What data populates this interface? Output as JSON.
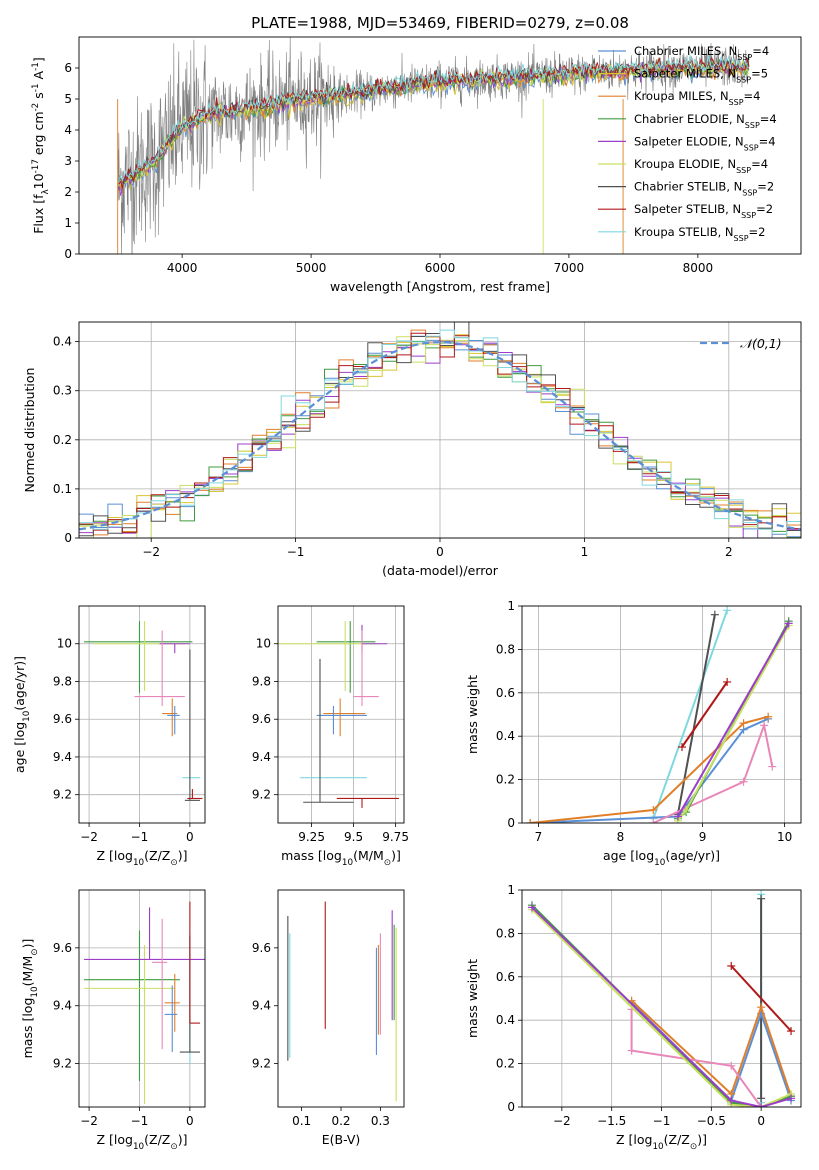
{
  "figure": {
    "title": "PLATE=1988, MJD=53469, FIBERID=0279, z=0.08"
  },
  "colors": {
    "chabrier_miles": "#5b8fd6",
    "salpeter_miles": "#d9c430",
    "kroupa_miles": "#e07f2a",
    "chabrier_elodie": "#3f9b3f",
    "salpeter_elodie": "#9b3fc8",
    "kroupa_elodie": "#c8e060",
    "chabrier_stelib": "#505050",
    "salpeter_stelib": "#b01818",
    "kroupa_stelib": "#7fd8e0",
    "extra_pink": "#e887b8",
    "data_gray": "#808080",
    "normal_fit": "#5b8fd6"
  },
  "chart_data": [
    {
      "id": "spectrum",
      "type": "line",
      "title": "PLATE=1988, MJD=53469, FIBERID=0279, z=0.08",
      "xlabel": "wavelength [Angstrom, rest frame]",
      "ylabel": "Flux [f$_\\lambda$10$^{-17}$ erg cm$^{-2}$ s$^{-1}$ A$^{-1}$]",
      "xlim": [
        3200,
        8800
      ],
      "ylim": [
        0,
        7
      ],
      "xticks": [
        4000,
        5000,
        6000,
        7000,
        8000
      ],
      "yticks": [
        0,
        1,
        2,
        3,
        4,
        5,
        6
      ],
      "legend_position": "top-right",
      "legend": [
        {
          "label": "Chabrier MILES, N$_{SSP}$=4",
          "color_key": "chabrier_miles"
        },
        {
          "label": "Salpeter MILES, N$_{SSP}$=5",
          "color_key": "salpeter_miles"
        },
        {
          "label": "Kroupa MILES, N$_{SSP}$=4",
          "color_key": "kroupa_miles"
        },
        {
          "label": "Chabrier ELODIE, N$_{SSP}$=4",
          "color_key": "chabrier_elodie"
        },
        {
          "label": "Salpeter ELODIE, N$_{SSP}$=4",
          "color_key": "salpeter_elodie"
        },
        {
          "label": "Kroupa ELODIE, N$_{SSP}$=4",
          "color_key": "kroupa_elodie"
        },
        {
          "label": "Chabrier STELIB, N$_{SSP}$=2",
          "color_key": "chabrier_stelib"
        },
        {
          "label": "Salpeter STELIB, N$_{SSP}$=2",
          "color_key": "salpeter_stelib"
        },
        {
          "label": "Kroupa STELIB, N$_{SSP}$=2",
          "color_key": "kroupa_stelib"
        }
      ],
      "model_continuum": {
        "x": [
          3500,
          3600,
          3800,
          3900,
          4000,
          4100,
          4200,
          4400,
          4600,
          4800,
          5000,
          5200,
          5400,
          5600,
          5800,
          6000,
          6200,
          6400,
          6600,
          6800,
          7000,
          7200,
          7400,
          7600,
          7800,
          8000,
          8200,
          8400
        ],
        "y": [
          2.2,
          2.5,
          3.0,
          3.6,
          4.1,
          4.3,
          4.5,
          4.6,
          4.75,
          4.9,
          5.0,
          5.1,
          5.2,
          5.35,
          5.45,
          5.55,
          5.6,
          5.65,
          5.7,
          5.75,
          5.8,
          5.85,
          5.9,
          5.95,
          6.0,
          6.0,
          6.05,
          6.0
        ]
      }
    },
    {
      "id": "residuals",
      "type": "histogram",
      "xlabel": "(data-model)/error",
      "ylabel": "Normed distribution",
      "xlim": [
        -2.5,
        2.5
      ],
      "ylim": [
        0,
        0.44
      ],
      "xticks": [
        -2,
        -1,
        0,
        1,
        2
      ],
      "yticks": [
        0.0,
        0.1,
        0.2,
        0.3,
        0.4
      ],
      "legend": [
        {
          "label": "$\\mathcal{N}(0,1)$",
          "color_key": "normal_fit",
          "style": "dashed"
        }
      ],
      "grid": true
    },
    {
      "id": "age_vs_Z",
      "type": "errorbar",
      "xlabel": "Z [log$_{10}$(Z/Z$_\\odot$)]",
      "ylabel": "age  [log$_{10}$(age/yr)]",
      "xlim": [
        -2.2,
        0.3
      ],
      "ylim": [
        9.05,
        10.2
      ],
      "xticks": [
        -2,
        -1,
        0
      ],
      "yticks": [
        9.2,
        9.4,
        9.6,
        9.8,
        10.0
      ],
      "grid": true,
      "points": [
        {
          "x": -1.0,
          "xerr": [
            1.1,
            1.05
          ],
          "y": 10.01,
          "yerr": [
            0.27,
            0.11
          ],
          "color_key": "chabrier_elodie"
        },
        {
          "x": -0.9,
          "xerr": [
            1.0,
            0.8
          ],
          "y": 10.0,
          "yerr": [
            0.25,
            0.12
          ],
          "color_key": "kroupa_elodie"
        },
        {
          "x": -0.3,
          "xerr": [
            0.3,
            0.3
          ],
          "y": 10.0,
          "yerr": [
            0.05,
            0.0
          ],
          "color_key": "salpeter_elodie"
        },
        {
          "x": -0.55,
          "xerr": [
            0.55,
            0.45
          ],
          "y": 9.72,
          "yerr": [
            0.05,
            0.35
          ],
          "color_key": "extra_pink"
        },
        {
          "x": -0.35,
          "xerr": [
            0.2,
            0.1
          ],
          "y": 9.63,
          "yerr": [
            0.12,
            0.08
          ],
          "color_key": "kroupa_miles"
        },
        {
          "x": -0.3,
          "xerr": [
            0.15,
            0.1
          ],
          "y": 9.62,
          "yerr": [
            0.1,
            0.05
          ],
          "color_key": "chabrier_miles"
        },
        {
          "x": 0.0,
          "xerr": [
            0.15,
            0.2
          ],
          "y": 9.29,
          "yerr": [
            0.0,
            0.0
          ],
          "color_key": "kroupa_stelib"
        },
        {
          "x": 0.0,
          "xerr": [
            0.1,
            0.2
          ],
          "y": 9.17,
          "yerr": [
            0.0,
            0.8
          ],
          "color_key": "chabrier_stelib"
        },
        {
          "x": 0.05,
          "xerr": [
            0.1,
            0.2
          ],
          "y": 9.18,
          "yerr": [
            0.0,
            0.05
          ],
          "color_key": "salpeter_stelib"
        }
      ]
    },
    {
      "id": "age_vs_mass",
      "type": "errorbar",
      "xlabel": "mass [log$_{10}$(M/M$_\\odot$)]",
      "ylabel": "",
      "xlim": [
        9.05,
        9.8
      ],
      "ylim": [
        9.05,
        10.2
      ],
      "xticks": [
        9.25,
        9.5,
        9.75
      ],
      "yticks": [
        9.2,
        9.4,
        9.6,
        9.8,
        10.0
      ],
      "grid": true,
      "points": [
        {
          "x": 9.48,
          "xerr": [
            0.2,
            0.15
          ],
          "y": 10.01,
          "yerr": [
            0.27,
            0.11
          ],
          "color_key": "chabrier_elodie"
        },
        {
          "x": 9.45,
          "xerr": [
            0.4,
            0.2
          ],
          "y": 10.0,
          "yerr": [
            0.25,
            0.12
          ],
          "color_key": "kroupa_elodie"
        },
        {
          "x": 9.55,
          "xerr": [
            0.0,
            0.15
          ],
          "y": 10.0,
          "yerr": [
            0.05,
            0.1
          ],
          "color_key": "salpeter_elodie"
        },
        {
          "x": 9.55,
          "xerr": [
            0.05,
            0.1
          ],
          "y": 9.72,
          "yerr": [
            0.05,
            0.35
          ],
          "color_key": "extra_pink"
        },
        {
          "x": 9.42,
          "xerr": [
            0.1,
            0.15
          ],
          "y": 9.63,
          "yerr": [
            0.12,
            0.08
          ],
          "color_key": "kroupa_miles"
        },
        {
          "x": 9.38,
          "xerr": [
            0.1,
            0.2
          ],
          "y": 9.62,
          "yerr": [
            0.1,
            0.05
          ],
          "color_key": "chabrier_miles"
        },
        {
          "x": 9.38,
          "xerr": [
            0.2,
            0.2
          ],
          "y": 9.29,
          "yerr": [
            0.0,
            0.0
          ],
          "color_key": "kroupa_stelib"
        },
        {
          "x": 9.3,
          "xerr": [
            0.1,
            0.2
          ],
          "y": 9.16,
          "yerr": [
            0.0,
            0.76
          ],
          "color_key": "chabrier_stelib"
        },
        {
          "x": 9.55,
          "xerr": [
            0.15,
            0.22
          ],
          "y": 9.18,
          "yerr": [
            0.05,
            0.0
          ],
          "color_key": "salpeter_stelib"
        }
      ]
    },
    {
      "id": "massweight_vs_age",
      "type": "line",
      "xlabel": "age  [log$_{10}$(age/yr)]",
      "ylabel": "mass weight",
      "xlim": [
        6.8,
        10.2
      ],
      "ylim": [
        0,
        1.0
      ],
      "xticks": [
        7,
        8,
        9,
        10
      ],
      "yticks": [
        0.0,
        0.2,
        0.4,
        0.6,
        0.8,
        1.0
      ],
      "grid": true,
      "series": [
        {
          "color_key": "kroupa_stelib",
          "x": [
            8.4,
            9.3
          ],
          "y": [
            0.02,
            0.98
          ]
        },
        {
          "color_key": "chabrier_stelib",
          "x": [
            8.7,
            9.15
          ],
          "y": [
            0.04,
            0.96
          ]
        },
        {
          "color_key": "salpeter_stelib",
          "x": [
            8.75,
            9.3
          ],
          "y": [
            0.35,
            0.65
          ]
        },
        {
          "color_key": "chabrier_miles",
          "x": [
            6.9,
            8.7,
            9.5,
            9.8
          ],
          "y": [
            0.0,
            0.03,
            0.43,
            0.48
          ]
        },
        {
          "color_key": "kroupa_miles",
          "x": [
            6.9,
            8.4,
            9.5,
            9.8
          ],
          "y": [
            0.0,
            0.06,
            0.46,
            0.49
          ]
        },
        {
          "color_key": "extra_pink",
          "x": [
            8.4,
            9.5,
            9.75,
            9.85
          ],
          "y": [
            0.0,
            0.19,
            0.45,
            0.26
          ]
        },
        {
          "color_key": "chabrier_elodie",
          "x": [
            8.7,
            8.8,
            10.05
          ],
          "y": [
            0.02,
            0.05,
            0.93
          ]
        },
        {
          "color_key": "kroupa_elodie",
          "x": [
            8.7,
            8.8,
            10.05
          ],
          "y": [
            0.01,
            0.06,
            0.91
          ]
        },
        {
          "color_key": "salpeter_elodie",
          "x": [
            8.7,
            10.05
          ],
          "y": [
            0.03,
            0.92
          ]
        }
      ]
    },
    {
      "id": "mass_vs_Z",
      "type": "errorbar",
      "xlabel": "Z [log$_{10}$(Z/Z$_\\odot$)]",
      "ylabel": "mass [log$_{10}$(M/M$_\\odot$)]",
      "xlim": [
        -2.2,
        0.3
      ],
      "ylim": [
        9.05,
        9.8
      ],
      "xticks": [
        -2,
        -1,
        0
      ],
      "yticks": [
        9.2,
        9.4,
        9.6
      ],
      "grid": true,
      "points": [
        {
          "x": -1.0,
          "xerr": [
            1.1,
            0.8
          ],
          "y": 9.49,
          "yerr": [
            0.35,
            0.17
          ],
          "color_key": "chabrier_elodie"
        },
        {
          "x": -0.9,
          "xerr": [
            1.2,
            0.6
          ],
          "y": 9.46,
          "yerr": [
            0.4,
            0.15
          ],
          "color_key": "kroupa_elodie"
        },
        {
          "x": -0.8,
          "xerr": [
            1.3,
            1.1
          ],
          "y": 9.56,
          "yerr": [
            0.0,
            0.18
          ],
          "color_key": "salpeter_elodie"
        },
        {
          "x": -0.55,
          "xerr": [
            0.2,
            0.1
          ],
          "y": 9.55,
          "yerr": [
            0.3,
            0.15
          ],
          "color_key": "extra_pink"
        },
        {
          "x": -0.3,
          "xerr": [
            0.2,
            0.1
          ],
          "y": 9.41,
          "yerr": [
            0.1,
            0.1
          ],
          "color_key": "kroupa_miles"
        },
        {
          "x": -0.35,
          "xerr": [
            0.15,
            0.1
          ],
          "y": 9.37,
          "yerr": [
            0.13,
            0.1
          ],
          "color_key": "chabrier_miles"
        },
        {
          "x": 0.0,
          "xerr": [
            0.0,
            0.0
          ],
          "y": 9.4,
          "yerr": [
            0.2,
            0.25
          ],
          "color_key": "kroupa_stelib"
        },
        {
          "x": 0.0,
          "xerr": [
            0.2,
            0.2
          ],
          "y": 9.24,
          "yerr": [
            0.0,
            0.4
          ],
          "color_key": "chabrier_stelib"
        },
        {
          "x": 0.0,
          "xerr": [
            0.0,
            0.2
          ],
          "y": 9.34,
          "yerr": [
            0.0,
            0.42
          ],
          "color_key": "salpeter_stelib"
        }
      ]
    },
    {
      "id": "mass_vs_EBV",
      "type": "errorbar",
      "xlabel": "E(B-V)",
      "ylabel": "",
      "xlim": [
        0.04,
        0.36
      ],
      "ylim": [
        9.05,
        9.8
      ],
      "xticks": [
        0.1,
        0.2,
        0.3
      ],
      "yticks": [
        9.2,
        9.4,
        9.6
      ],
      "grid": false,
      "points": [
        {
          "x": 0.065,
          "y": 9.46,
          "yerr": [
            0.25,
            0.25
          ],
          "color_key": "chabrier_stelib"
        },
        {
          "x": 0.07,
          "y": 9.42,
          "yerr": [
            0.2,
            0.23
          ],
          "color_key": "kroupa_stelib"
        },
        {
          "x": 0.16,
          "y": 9.54,
          "yerr": [
            0.22,
            0.22
          ],
          "color_key": "salpeter_stelib"
        },
        {
          "x": 0.29,
          "y": 9.42,
          "yerr": [
            0.19,
            0.18
          ],
          "color_key": "chabrier_miles"
        },
        {
          "x": 0.295,
          "y": 9.42,
          "yerr": [
            0.12,
            0.19
          ],
          "color_key": "kroupa_miles"
        },
        {
          "x": 0.3,
          "y": 9.45,
          "yerr": [
            0.15,
            0.2
          ],
          "color_key": "extra_pink"
        },
        {
          "x": 0.33,
          "y": 9.54,
          "yerr": [
            0.19,
            0.19
          ],
          "color_key": "salpeter_elodie"
        },
        {
          "x": 0.335,
          "y": 9.5,
          "yerr": [
            0.15,
            0.18
          ],
          "color_key": "chabrier_elodie"
        },
        {
          "x": 0.34,
          "y": 9.37,
          "yerr": [
            0.3,
            0.3
          ],
          "color_key": "kroupa_elodie"
        }
      ]
    },
    {
      "id": "massweight_vs_Z",
      "type": "line",
      "xlabel": "Z [log$_{10}$(Z/Z$_\\odot$)]",
      "ylabel": "mass weight",
      "xlim": [
        -2.4,
        0.4
      ],
      "ylim": [
        0,
        1.0
      ],
      "xticks": [
        -2.0,
        -1.5,
        -1.0,
        -0.5,
        0.0
      ],
      "yticks": [
        0.0,
        0.2,
        0.4,
        0.6,
        0.8,
        1.0
      ],
      "grid": true,
      "series": [
        {
          "color_key": "kroupa_stelib",
          "x": [
            0.0,
            0.0
          ],
          "y": [
            0.98,
            0.02
          ]
        },
        {
          "color_key": "chabrier_stelib",
          "x": [
            0.0,
            0.0
          ],
          "y": [
            0.96,
            0.04
          ]
        },
        {
          "color_key": "salpeter_stelib",
          "x": [
            -0.3,
            0.3
          ],
          "y": [
            0.65,
            0.35
          ]
        },
        {
          "color_key": "chabrier_miles",
          "x": [
            -1.3,
            -0.3,
            0.0,
            0.3
          ],
          "y": [
            0.48,
            0.03,
            0.43,
            0.03
          ]
        },
        {
          "color_key": "kroupa_miles",
          "x": [
            -1.3,
            -0.3,
            0.0,
            0.3
          ],
          "y": [
            0.49,
            0.06,
            0.46,
            0.05
          ]
        },
        {
          "color_key": "extra_pink",
          "x": [
            -1.3,
            -1.3,
            -0.3,
            0.0,
            0.3
          ],
          "y": [
            0.45,
            0.26,
            0.19,
            0.0,
            0.05
          ]
        },
        {
          "color_key": "chabrier_elodie",
          "x": [
            -2.3,
            -0.3,
            0.0,
            0.3
          ],
          "y": [
            0.93,
            0.02,
            0.0,
            0.05
          ]
        },
        {
          "color_key": "kroupa_elodie",
          "x": [
            -2.3,
            -0.3,
            0.0,
            0.3
          ],
          "y": [
            0.91,
            0.01,
            0.0,
            0.06
          ]
        },
        {
          "color_key": "salpeter_elodie",
          "x": [
            -2.3,
            -0.3,
            0.0,
            0.3
          ],
          "y": [
            0.92,
            0.03,
            0.0,
            0.04
          ]
        }
      ]
    }
  ]
}
